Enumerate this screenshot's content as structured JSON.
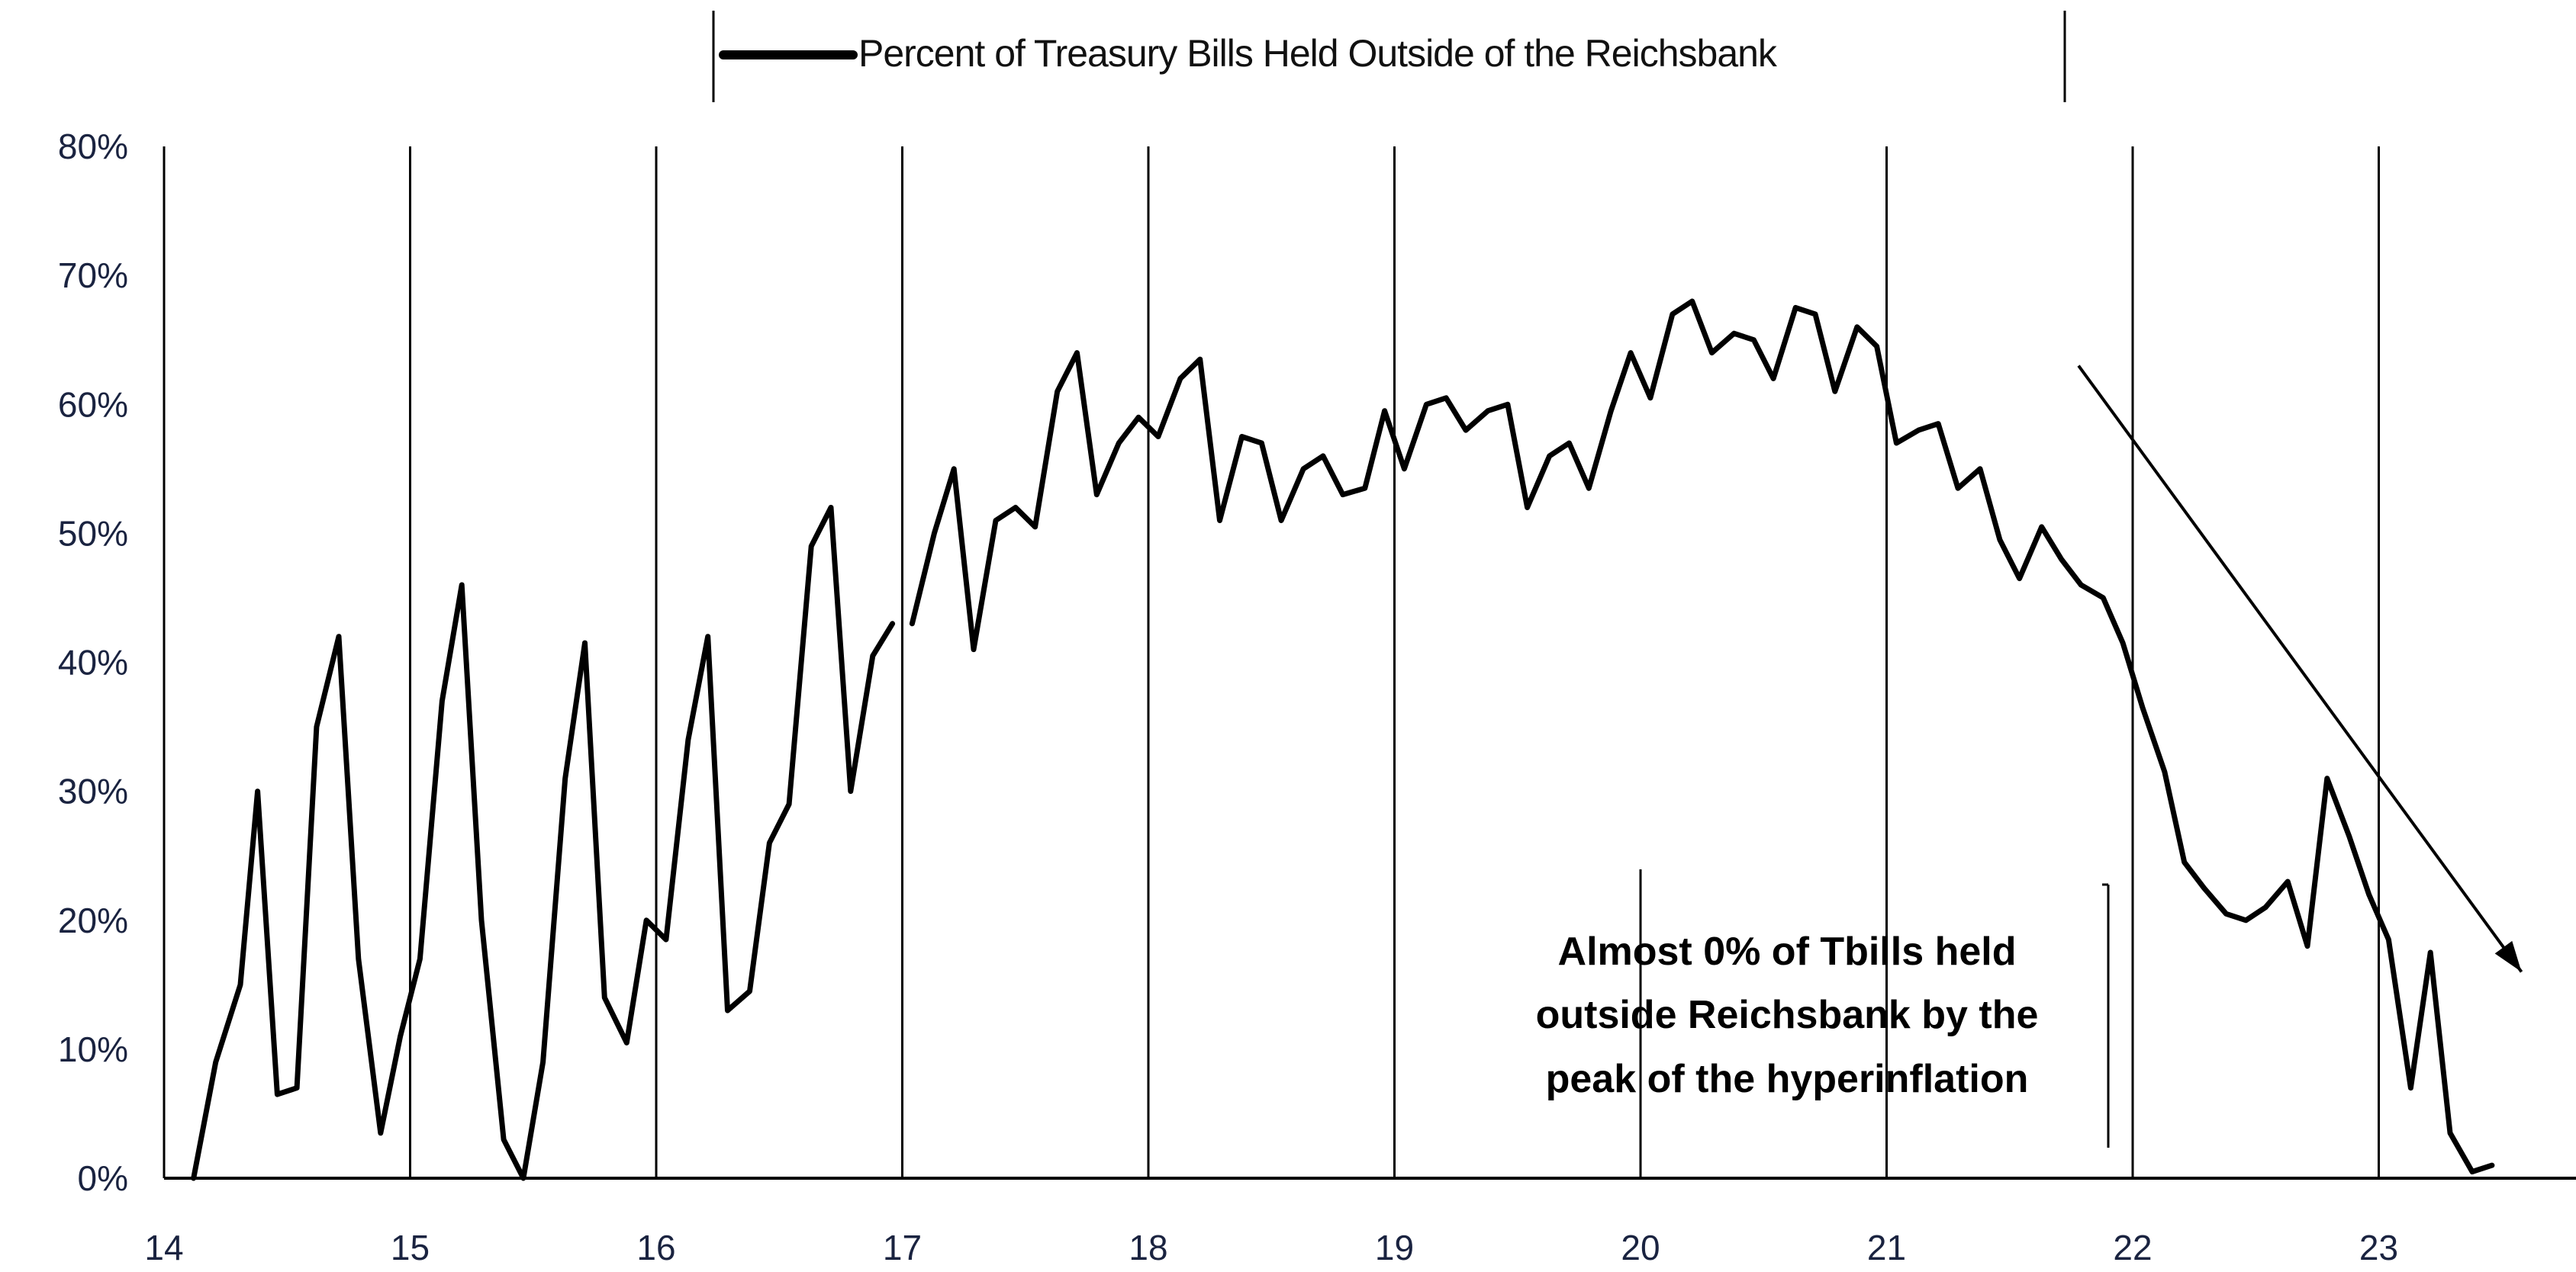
{
  "chart_data": {
    "type": "line",
    "title": "",
    "xlabel": "",
    "ylabel": "",
    "x_ticks": [
      "14",
      "15",
      "16",
      "17",
      "18",
      "19",
      "20",
      "21",
      "22",
      "23"
    ],
    "y_ticks": [
      "0%",
      "10%",
      "20%",
      "30%",
      "40%",
      "50%",
      "60%",
      "70%",
      "80%"
    ],
    "xlim": [
      14,
      23.8
    ],
    "ylim": [
      0,
      80
    ],
    "grid": "vertical lines at each year",
    "legend_position": "top-center",
    "series": [
      {
        "name": "Percent of Treasury Bills Held Outside of the Reichsbank",
        "color": "#000000",
        "segments": [
          [
            [
              14.12,
              0
            ],
            [
              14.21,
              9
            ],
            [
              14.31,
              15
            ],
            [
              14.38,
              30
            ],
            [
              14.46,
              6.5
            ],
            [
              14.54,
              7
            ],
            [
              14.62,
              35
            ],
            [
              14.71,
              42
            ],
            [
              14.79,
              17
            ],
            [
              14.88,
              3.5
            ],
            [
              14.96,
              11
            ],
            [
              15.04,
              17
            ],
            [
              15.13,
              37
            ],
            [
              15.21,
              46
            ],
            [
              15.29,
              20
            ],
            [
              15.38,
              3
            ],
            [
              15.46,
              0
            ],
            [
              15.54,
              9
            ],
            [
              15.63,
              31
            ],
            [
              15.71,
              41.5
            ],
            [
              15.79,
              14
            ],
            [
              15.88,
              10.5
            ],
            [
              15.96,
              20
            ],
            [
              16.04,
              18.5
            ],
            [
              16.13,
              34
            ],
            [
              16.21,
              42
            ],
            [
              16.29,
              13
            ],
            [
              16.38,
              14.5
            ],
            [
              16.46,
              26
            ],
            [
              16.54,
              29
            ],
            [
              16.63,
              49
            ],
            [
              16.71,
              52
            ],
            [
              16.79,
              30
            ],
            [
              16.88,
              40.5
            ],
            [
              16.96,
              43
            ]
          ],
          [
            [
              17.04,
              43
            ],
            [
              17.13,
              50
            ],
            [
              17.21,
              55
            ],
            [
              17.29,
              41
            ],
            [
              17.38,
              51
            ],
            [
              17.46,
              52
            ],
            [
              17.54,
              50.5
            ],
            [
              17.63,
              61
            ],
            [
              17.71,
              64
            ],
            [
              17.79,
              53
            ],
            [
              17.88,
              57
            ],
            [
              17.96,
              59
            ],
            [
              18.04,
              57.5
            ],
            [
              18.13,
              62
            ],
            [
              18.21,
              63.5
            ],
            [
              18.29,
              51
            ],
            [
              18.38,
              57.5
            ],
            [
              18.46,
              57
            ],
            [
              18.54,
              51
            ],
            [
              18.63,
              55
            ],
            [
              18.71,
              56
            ],
            [
              18.79,
              53
            ],
            [
              18.88,
              53.5
            ],
            [
              18.96,
              59.5
            ],
            [
              19.04,
              55
            ],
            [
              19.13,
              60
            ],
            [
              19.21,
              60.5
            ],
            [
              19.29,
              58
            ],
            [
              19.38,
              59.5
            ],
            [
              19.46,
              60
            ],
            [
              19.54,
              52
            ],
            [
              19.63,
              56
            ],
            [
              19.71,
              57
            ],
            [
              19.79,
              53.5
            ],
            [
              19.88,
              59.5
            ],
            [
              19.96,
              64
            ],
            [
              20.04,
              60.5
            ],
            [
              20.13,
              67
            ],
            [
              20.21,
              68
            ],
            [
              20.29,
              64
            ],
            [
              20.38,
              65.5
            ],
            [
              20.46,
              65
            ],
            [
              20.54,
              62
            ],
            [
              20.63,
              67.5
            ],
            [
              20.71,
              67
            ],
            [
              20.79,
              61
            ],
            [
              20.88,
              66
            ],
            [
              20.96,
              64.5
            ],
            [
              21.04,
              57
            ],
            [
              21.13,
              58
            ],
            [
              21.21,
              58.5
            ],
            [
              21.29,
              53.5
            ],
            [
              21.38,
              55
            ],
            [
              21.46,
              49.5
            ],
            [
              21.54,
              46.5
            ],
            [
              21.63,
              50.5
            ],
            [
              21.71,
              48
            ],
            [
              21.79,
              46
            ],
            [
              21.88,
              45
            ],
            [
              21.96,
              41.5
            ],
            [
              22.04,
              36.5
            ],
            [
              22.13,
              31.5
            ],
            [
              22.21,
              24.5
            ],
            [
              22.29,
              22.5
            ],
            [
              22.38,
              20.5
            ],
            [
              22.46,
              20
            ],
            [
              22.54,
              21
            ],
            [
              22.63,
              23
            ],
            [
              22.71,
              18
            ],
            [
              22.79,
              31
            ],
            [
              22.88,
              26.5
            ],
            [
              22.96,
              22
            ],
            [
              23.04,
              18.5
            ],
            [
              23.13,
              7
            ],
            [
              23.21,
              17.5
            ],
            [
              23.29,
              3.5
            ],
            [
              23.38,
              0.5
            ],
            [
              23.46,
              1
            ]
          ]
        ]
      }
    ],
    "annotations": [
      {
        "text_lines": [
          "Almost 0% of Tbills held",
          "outside Reichsbank by the",
          "peak of the hyperinflation"
        ],
        "arrow": {
          "from": [
            21.78,
            63
          ],
          "to": [
            23.58,
            16
          ]
        }
      }
    ]
  }
}
